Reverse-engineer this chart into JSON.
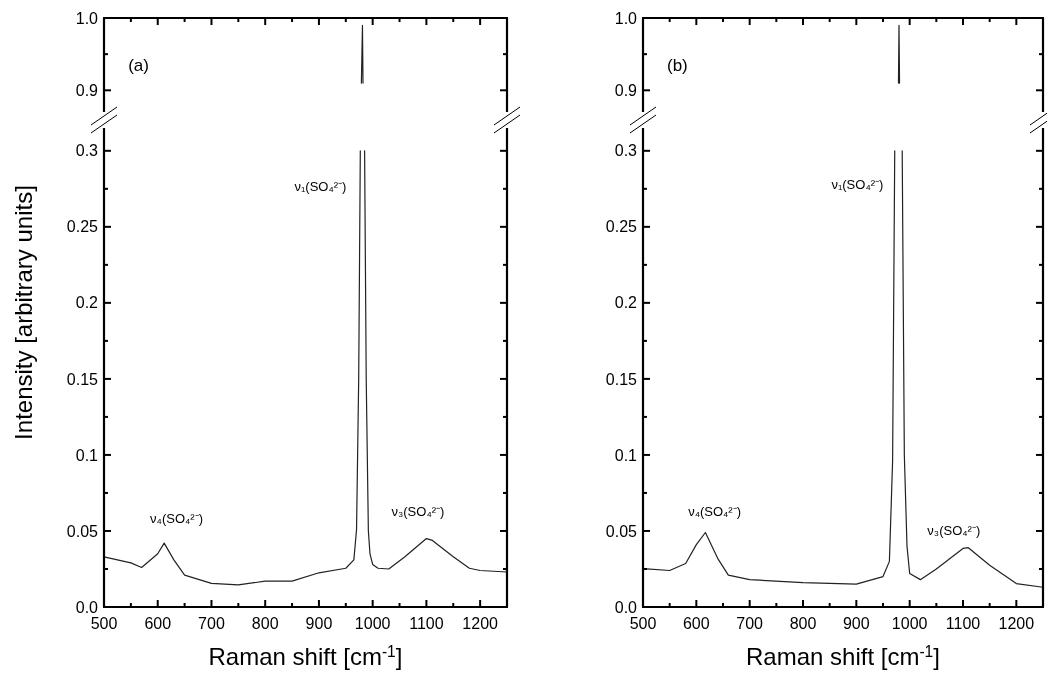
{
  "chart_data": [
    {
      "type": "line",
      "tick_labels": "y",
      "xlim": [
        500,
        1250
      ],
      "xticks": [
        {
          "value": 500,
          "label": null
        },
        {
          "value": 550,
          "label": null
        },
        {
          "value": 600,
          "label": null
        },
        {
          "value": 650,
          "label": null
        },
        {
          "value": 700,
          "label": null
        },
        {
          "value": 750,
          "label": null
        },
        {
          "value": 800,
          "label": null
        },
        {
          "value": 850,
          "label": null
        },
        {
          "value": 900,
          "label": null
        },
        {
          "value": 950,
          "label": null
        },
        {
          "value": 1000,
          "label": null
        },
        {
          "value": 1050,
          "label": null
        },
        {
          "value": 1100,
          "label": null
        },
        {
          "value": 1150,
          "label": null
        },
        {
          "value": 1200,
          "label": null
        },
        {
          "value": 1250,
          "label": null
        }
      ],
      "ylim": [
        0.87,
        1.0
      ],
      "yticks": [
        0.9,
        {
          "value": 0.95,
          "label": null
        },
        {
          "value": 1.0,
          "label": "1.0"
        }
      ],
      "series": [
        {
          "color": "#222222",
          "x": [
            979,
            981,
            982
          ],
          "values": [
            0.91,
            0.99,
            0.91
          ]
        }
      ],
      "annotations": [
        "(a)"
      ]
    },
    {
      "type": "line",
      "xlabel": "Raman shift [cm$^{-1}$]",
      "ylabel": "Intensity [arbitrary units]",
      "xlim": [
        500,
        1250
      ],
      "xticks": [
        500,
        {
          "value": 550,
          "label": null
        },
        600,
        {
          "value": 650,
          "label": null
        },
        700,
        {
          "value": 750,
          "label": null
        },
        800,
        {
          "value": 850,
          "label": null
        },
        900,
        {
          "value": 950,
          "label": null
        },
        1000,
        {
          "value": 1050,
          "label": null
        },
        1100,
        {
          "value": 1150,
          "label": null
        },
        1200,
        {
          "value": 1250,
          "label": null
        }
      ],
      "ylim": [
        0,
        0.315
      ],
      "yticks": [
        {
          "value": 0,
          "label": "0.0"
        },
        {
          "value": 0.025,
          "label": null
        },
        0.05,
        {
          "value": 0.075,
          "label": null
        },
        0.1,
        {
          "value": 0.125,
          "label": null
        },
        0.15,
        {
          "value": 0.175,
          "label": null
        },
        0.2,
        {
          "value": 0.225,
          "label": null
        },
        0.25,
        {
          "value": 0.275,
          "label": null
        },
        0.3
      ],
      "series": [
        {
          "color": "#222222",
          "x": [
            500,
            550,
            570,
            600,
            612,
            630,
            650,
            700,
            750,
            800,
            850,
            900,
            950,
            965,
            970,
            974,
            977,
            981,
            985,
            988,
            992,
            995,
            1000,
            1010,
            1030,
            1060,
            1100,
            1110,
            1150,
            1180,
            1200,
            1250
          ],
          "values": [
            0.033,
            0.029,
            0.026,
            0.035,
            0.042,
            0.031,
            0.021,
            0.0155,
            0.0145,
            0.017,
            0.017,
            0.0225,
            0.0255,
            0.031,
            0.051,
            0.15,
            0.3,
            null,
            0.3,
            0.15,
            0.05,
            0.035,
            0.028,
            0.0255,
            0.025,
            0.033,
            0.045,
            0.044,
            0.033,
            0.0255,
            0.024,
            0.023
          ]
        }
      ],
      "annotations": [
        "ν₄(SO₄²⁻)",
        "ν₁(SO₄²⁻)",
        "ν₃(SO₄²⁻)"
      ]
    },
    {
      "type": "line",
      "tick_labels": "y",
      "xlim": [
        500,
        1250
      ],
      "xticks": [
        {
          "value": 500,
          "label": null
        },
        {
          "value": 550,
          "label": null
        },
        {
          "value": 600,
          "label": null
        },
        {
          "value": 650,
          "label": null
        },
        {
          "value": 700,
          "label": null
        },
        {
          "value": 750,
          "label": null
        },
        {
          "value": 800,
          "label": null
        },
        {
          "value": 850,
          "label": null
        },
        {
          "value": 900,
          "label": null
        },
        {
          "value": 950,
          "label": null
        },
        {
          "value": 1000,
          "label": null
        },
        {
          "value": 1050,
          "label": null
        },
        {
          "value": 1100,
          "label": null
        },
        {
          "value": 1150,
          "label": null
        },
        {
          "value": 1200,
          "label": null
        },
        {
          "value": 1250,
          "label": null
        }
      ],
      "ylim": [
        0.87,
        1.0
      ],
      "yticks": [
        0.9,
        {
          "value": 0.95,
          "label": null
        },
        {
          "value": 1.0,
          "label": "1.0"
        }
      ],
      "series": [
        {
          "color": "#222222",
          "x": [
            979,
            980,
            981
          ],
          "values": [
            0.91,
            0.99,
            0.91
          ]
        }
      ],
      "annotations": [
        "(b)"
      ]
    },
    {
      "type": "line",
      "xlabel": "Raman shift [cm$^{-1}$]",
      "xlim": [
        500,
        1250
      ],
      "xticks": [
        500,
        {
          "value": 550,
          "label": null
        },
        600,
        {
          "value": 650,
          "label": null
        },
        700,
        {
          "value": 750,
          "label": null
        },
        800,
        {
          "value": 850,
          "label": null
        },
        900,
        {
          "value": 950,
          "label": null
        },
        1000,
        {
          "value": 1050,
          "label": null
        },
        1100,
        {
          "value": 1150,
          "label": null
        },
        1200,
        {
          "value": 1250,
          "label": null
        }
      ],
      "ylim": [
        0,
        0.315
      ],
      "yticks": [
        {
          "value": 0,
          "label": "0.0"
        },
        {
          "value": 0.025,
          "label": null
        },
        0.05,
        {
          "value": 0.075,
          "label": null
        },
        0.1,
        {
          "value": 0.125,
          "label": null
        },
        0.15,
        {
          "value": 0.175,
          "label": null
        },
        0.2,
        {
          "value": 0.225,
          "label": null
        },
        0.25,
        {
          "value": 0.275,
          "label": null
        },
        0.3
      ],
      "series": [
        {
          "color": "#222222",
          "x": [
            500,
            550,
            580,
            600,
            617,
            640,
            660,
            700,
            800,
            900,
            950,
            962,
            968,
            972,
            980,
            986,
            988,
            990,
            995,
            1000,
            1020,
            1050,
            1100,
            1110,
            1150,
            1200,
            1250
          ],
          "values": [
            0.0253,
            0.024,
            0.0286,
            0.041,
            0.049,
            0.032,
            0.021,
            0.018,
            0.016,
            0.015,
            0.02,
            0.03,
            0.096,
            0.3,
            null,
            0.3,
            0.2,
            0.1,
            0.04,
            0.022,
            0.018,
            0.025,
            0.0385,
            0.039,
            0.0275,
            0.0154,
            0.013
          ]
        }
      ],
      "annotations": [
        "ν₄(SO₄²⁻)",
        "ν₁(SO₄²⁻)",
        "ν₃(SO₄²⁻)"
      ]
    }
  ]
}
